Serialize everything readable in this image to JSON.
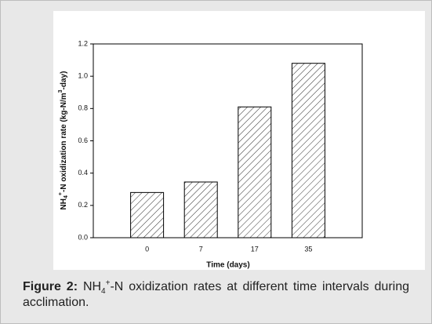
{
  "chart_data": {
    "type": "bar",
    "ylabel": [
      "NH",
      "4",
      "+",
      "-N oxidization rate (kg-N/m",
      "3",
      "-day)"
    ],
    "xlabel": "Time (days)",
    "categories": [
      "0",
      "7",
      "17",
      "35"
    ],
    "values": [
      0.28,
      0.345,
      0.81,
      1.08
    ],
    "color": "#ffffff",
    "hatch_color": "#333333",
    "ylim": [
      0,
      1.2
    ],
    "yticks": [
      {
        "value": 0,
        "label": "0.0"
      },
      0.2,
      0.4,
      0.6,
      0.8,
      {
        "value": 1,
        "label": "1.0"
      },
      1.2
    ]
  },
  "caption": {
    "label": "Figure 2:",
    "text": [
      "NH",
      "4",
      "+",
      "-N oxidization rates at different time intervals during acclimation."
    ]
  }
}
